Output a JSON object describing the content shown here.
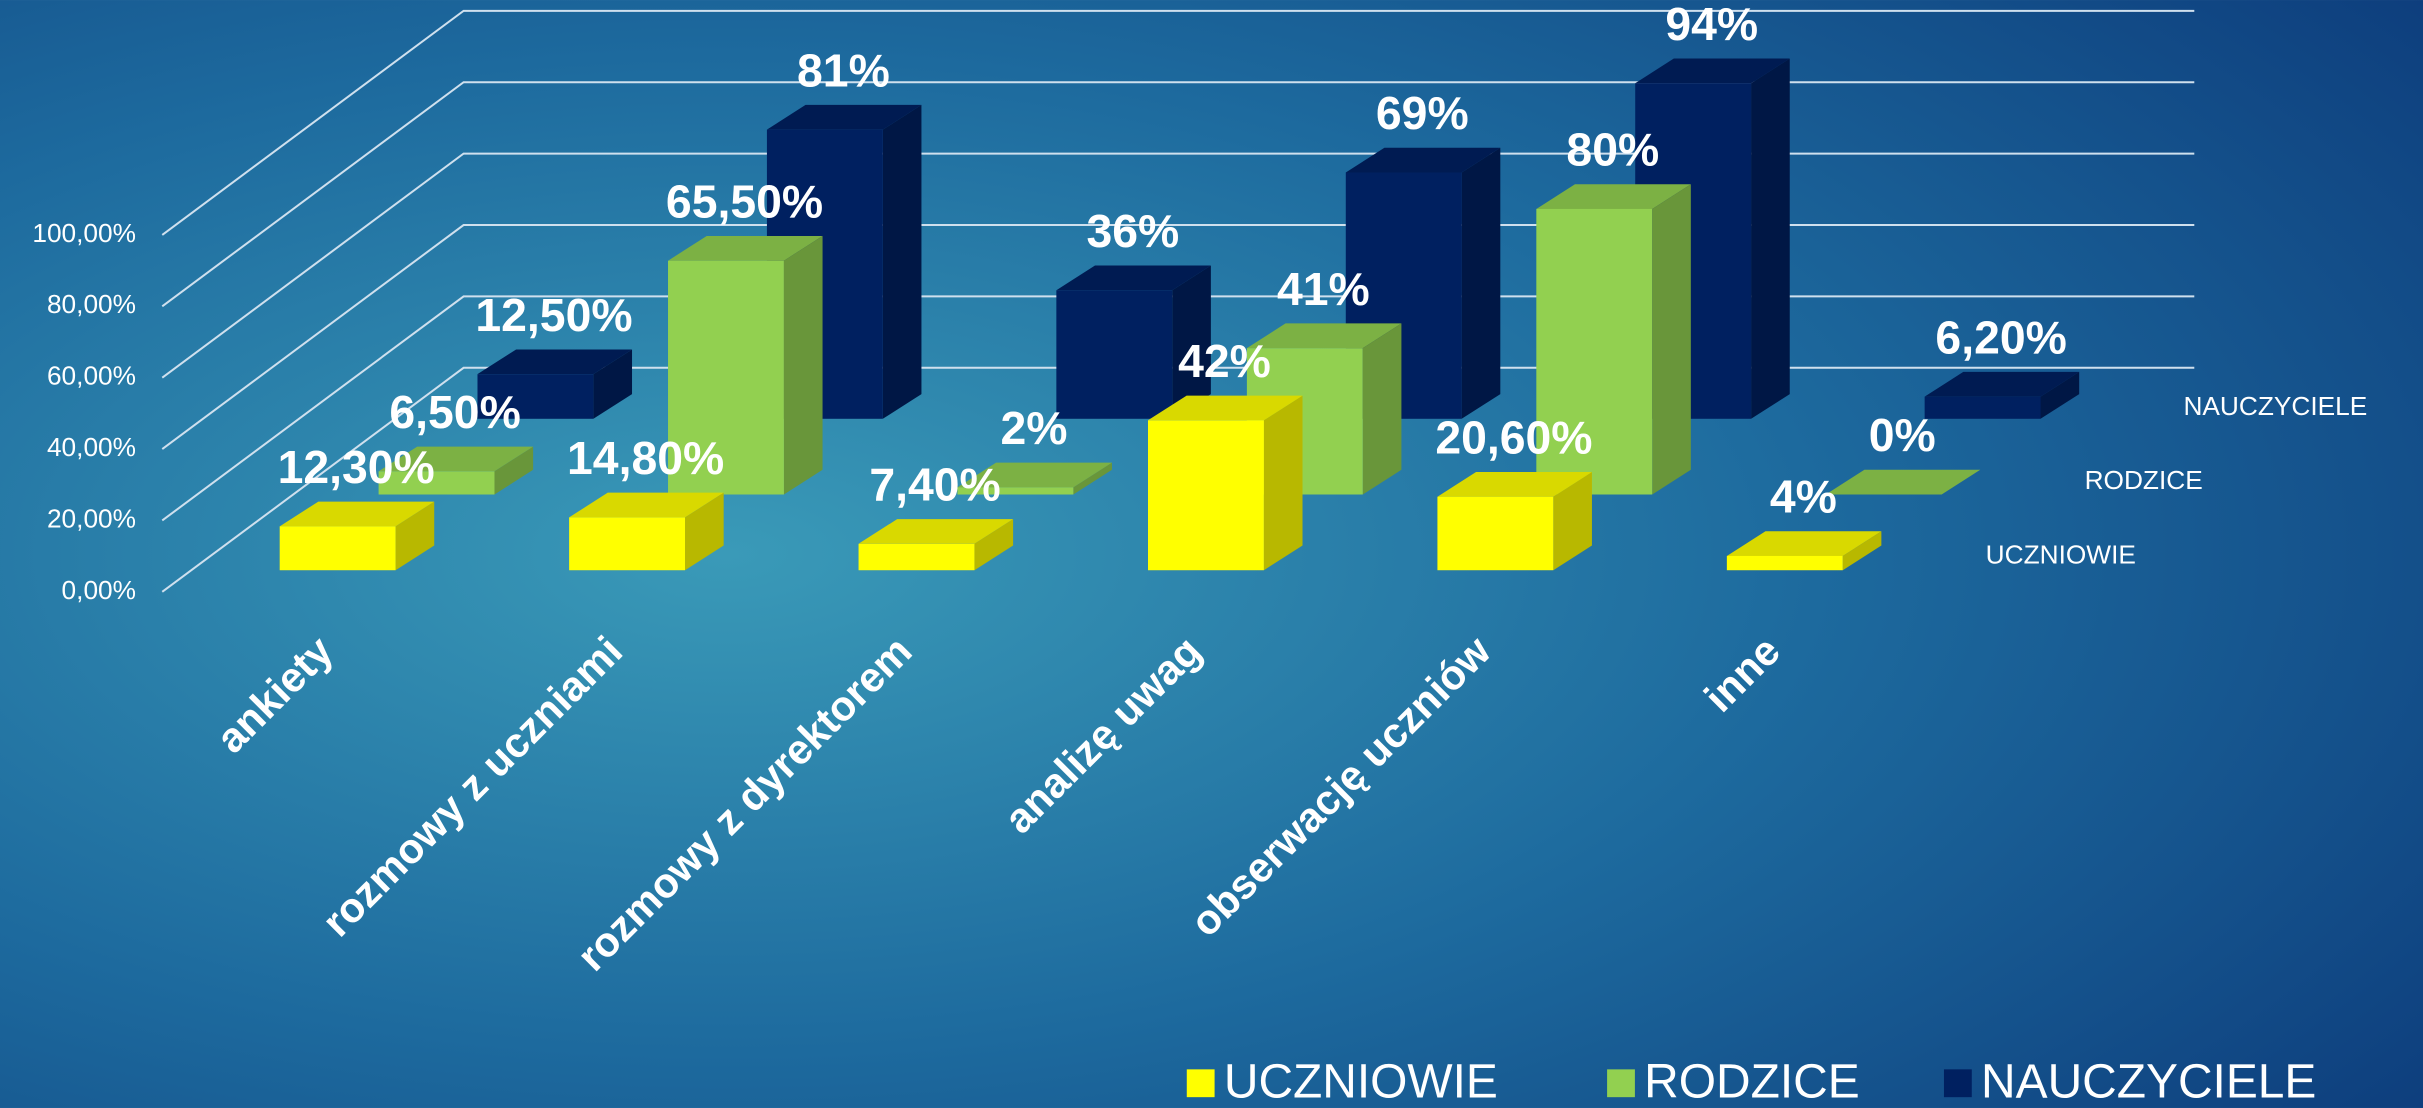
{
  "chart_data": {
    "type": "bar3d",
    "categories": [
      "ankiety",
      "rozmowy  z uczniami",
      "rozmowy z dyrektorem",
      "analizę uwag",
      "obserwację uczniów",
      "inne"
    ],
    "series": [
      {
        "name": "UCZNIOWIE",
        "color": "#ffff00",
        "values": [
          12.3,
          14.8,
          7.4,
          42,
          20.6,
          4
        ],
        "value_labels": [
          "12,30%",
          "14,80%",
          "7,40%",
          "42%",
          "20,60%",
          "4%"
        ]
      },
      {
        "name": "RODZICE",
        "color": "#92d050",
        "values": [
          6.5,
          65.5,
          2,
          41,
          80,
          0
        ],
        "value_labels": [
          "6,50%",
          "65,50%",
          "2%",
          "41%",
          "80%",
          "0%"
        ]
      },
      {
        "name": "NAUCZYCIELE",
        "color": "#002060",
        "values": [
          12.5,
          81,
          36,
          69,
          94,
          6.2
        ],
        "value_labels": [
          "12,50%",
          "81%",
          "36%",
          "69%",
          "94%",
          "6,20%"
        ]
      }
    ],
    "ylim": [
      0,
      100
    ],
    "yticks": [
      {
        "value": 0,
        "label": "0,00%"
      },
      {
        "value": 20,
        "label": "20,00%"
      },
      {
        "value": 40,
        "label": "40,00%"
      },
      {
        "value": 60,
        "label": "60,00%"
      },
      {
        "value": 80,
        "label": "80,00%"
      },
      {
        "value": 100,
        "label": "100,00%"
      }
    ],
    "grid": true
  }
}
